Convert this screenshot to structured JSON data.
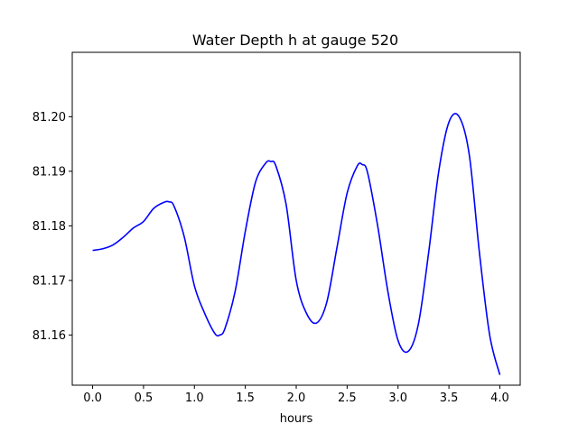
{
  "chart_data": {
    "type": "line",
    "title": "Water Depth h at gauge 520",
    "xlabel": "hours",
    "ylabel": "",
    "xlim": [
      -0.2,
      4.2
    ],
    "ylim": [
      81.1508,
      81.2118
    ],
    "x_ticks": [
      0.0,
      0.5,
      1.0,
      1.5,
      2.0,
      2.5,
      3.0,
      3.5,
      4.0
    ],
    "x_tick_labels": [
      "0.0",
      "0.5",
      "1.0",
      "1.5",
      "2.0",
      "2.5",
      "3.0",
      "3.5",
      "4.0"
    ],
    "y_ticks": [
      81.16,
      81.17,
      81.18,
      81.19,
      81.2
    ],
    "y_tick_labels": [
      "81.16",
      "81.17",
      "81.18",
      "81.19",
      "81.20"
    ],
    "grid": false,
    "series": [
      {
        "color": "#0000ff",
        "x": [
          0.0,
          0.1,
          0.2,
          0.3,
          0.4,
          0.5,
          0.6,
          0.7,
          0.75,
          0.8,
          0.9,
          1.0,
          1.1,
          1.2,
          1.25,
          1.3,
          1.4,
          1.5,
          1.6,
          1.7,
          1.75,
          1.8,
          1.9,
          2.0,
          2.1,
          2.2,
          2.3,
          2.4,
          2.5,
          2.6,
          2.65,
          2.7,
          2.8,
          2.9,
          3.0,
          3.1,
          3.2,
          3.3,
          3.4,
          3.5,
          3.6,
          3.7,
          3.8,
          3.9,
          4.0
        ],
        "y": [
          81.1755,
          81.1758,
          81.1765,
          81.1779,
          81.1796,
          81.1808,
          81.1832,
          81.1843,
          81.1844,
          81.1836,
          81.178,
          81.169,
          81.164,
          81.1603,
          81.16,
          81.1612,
          81.168,
          81.179,
          81.188,
          81.1915,
          81.1918,
          81.191,
          81.184,
          81.17,
          81.164,
          81.1622,
          81.166,
          81.176,
          81.186,
          81.191,
          81.1912,
          81.1898,
          81.18,
          81.168,
          81.159,
          81.157,
          81.162,
          81.175,
          81.19,
          81.199,
          81.2,
          81.193,
          81.175,
          81.16,
          81.1527
        ]
      }
    ]
  }
}
